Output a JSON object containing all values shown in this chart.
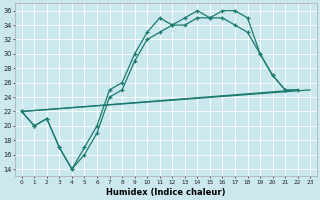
{
  "xlabel": "Humidex (Indice chaleur)",
  "bg_color": "#cce8ef",
  "grid_color": "#ffffff",
  "line_color": "#1a7a6e",
  "xlim": [
    -0.5,
    23.5
  ],
  "ylim": [
    13,
    37
  ],
  "yticks": [
    14,
    16,
    18,
    20,
    22,
    24,
    26,
    28,
    30,
    32,
    34,
    36
  ],
  "xticks": [
    0,
    1,
    2,
    3,
    4,
    5,
    6,
    7,
    8,
    9,
    10,
    11,
    12,
    13,
    14,
    15,
    16,
    17,
    18,
    19,
    20,
    21,
    22,
    23
  ],
  "line1_x": [
    0,
    1,
    2,
    3,
    4,
    5,
    6,
    7,
    8,
    9,
    10,
    11,
    12,
    13,
    14,
    15,
    16,
    17,
    18,
    19,
    20,
    21
  ],
  "line1_y": [
    22,
    20,
    21,
    17,
    14,
    17,
    20,
    25,
    26,
    30,
    33,
    35,
    34,
    35,
    36,
    35,
    36,
    36,
    35,
    30,
    27,
    25
  ],
  "line2_x": [
    0,
    1,
    2,
    3,
    4,
    5,
    6,
    7,
    8,
    9,
    10,
    11,
    12,
    13,
    14,
    15,
    16,
    17,
    18,
    19,
    20,
    21,
    22
  ],
  "line2_y": [
    22,
    20,
    21,
    17,
    14,
    16,
    19,
    24,
    25,
    29,
    32,
    33,
    34,
    34,
    35,
    35,
    35,
    34,
    33,
    30,
    27,
    25,
    25
  ],
  "line3_x": [
    0,
    22
  ],
  "line3_y": [
    22,
    25
  ],
  "line4_x": [
    0,
    23
  ],
  "line4_y": [
    22,
    25
  ]
}
